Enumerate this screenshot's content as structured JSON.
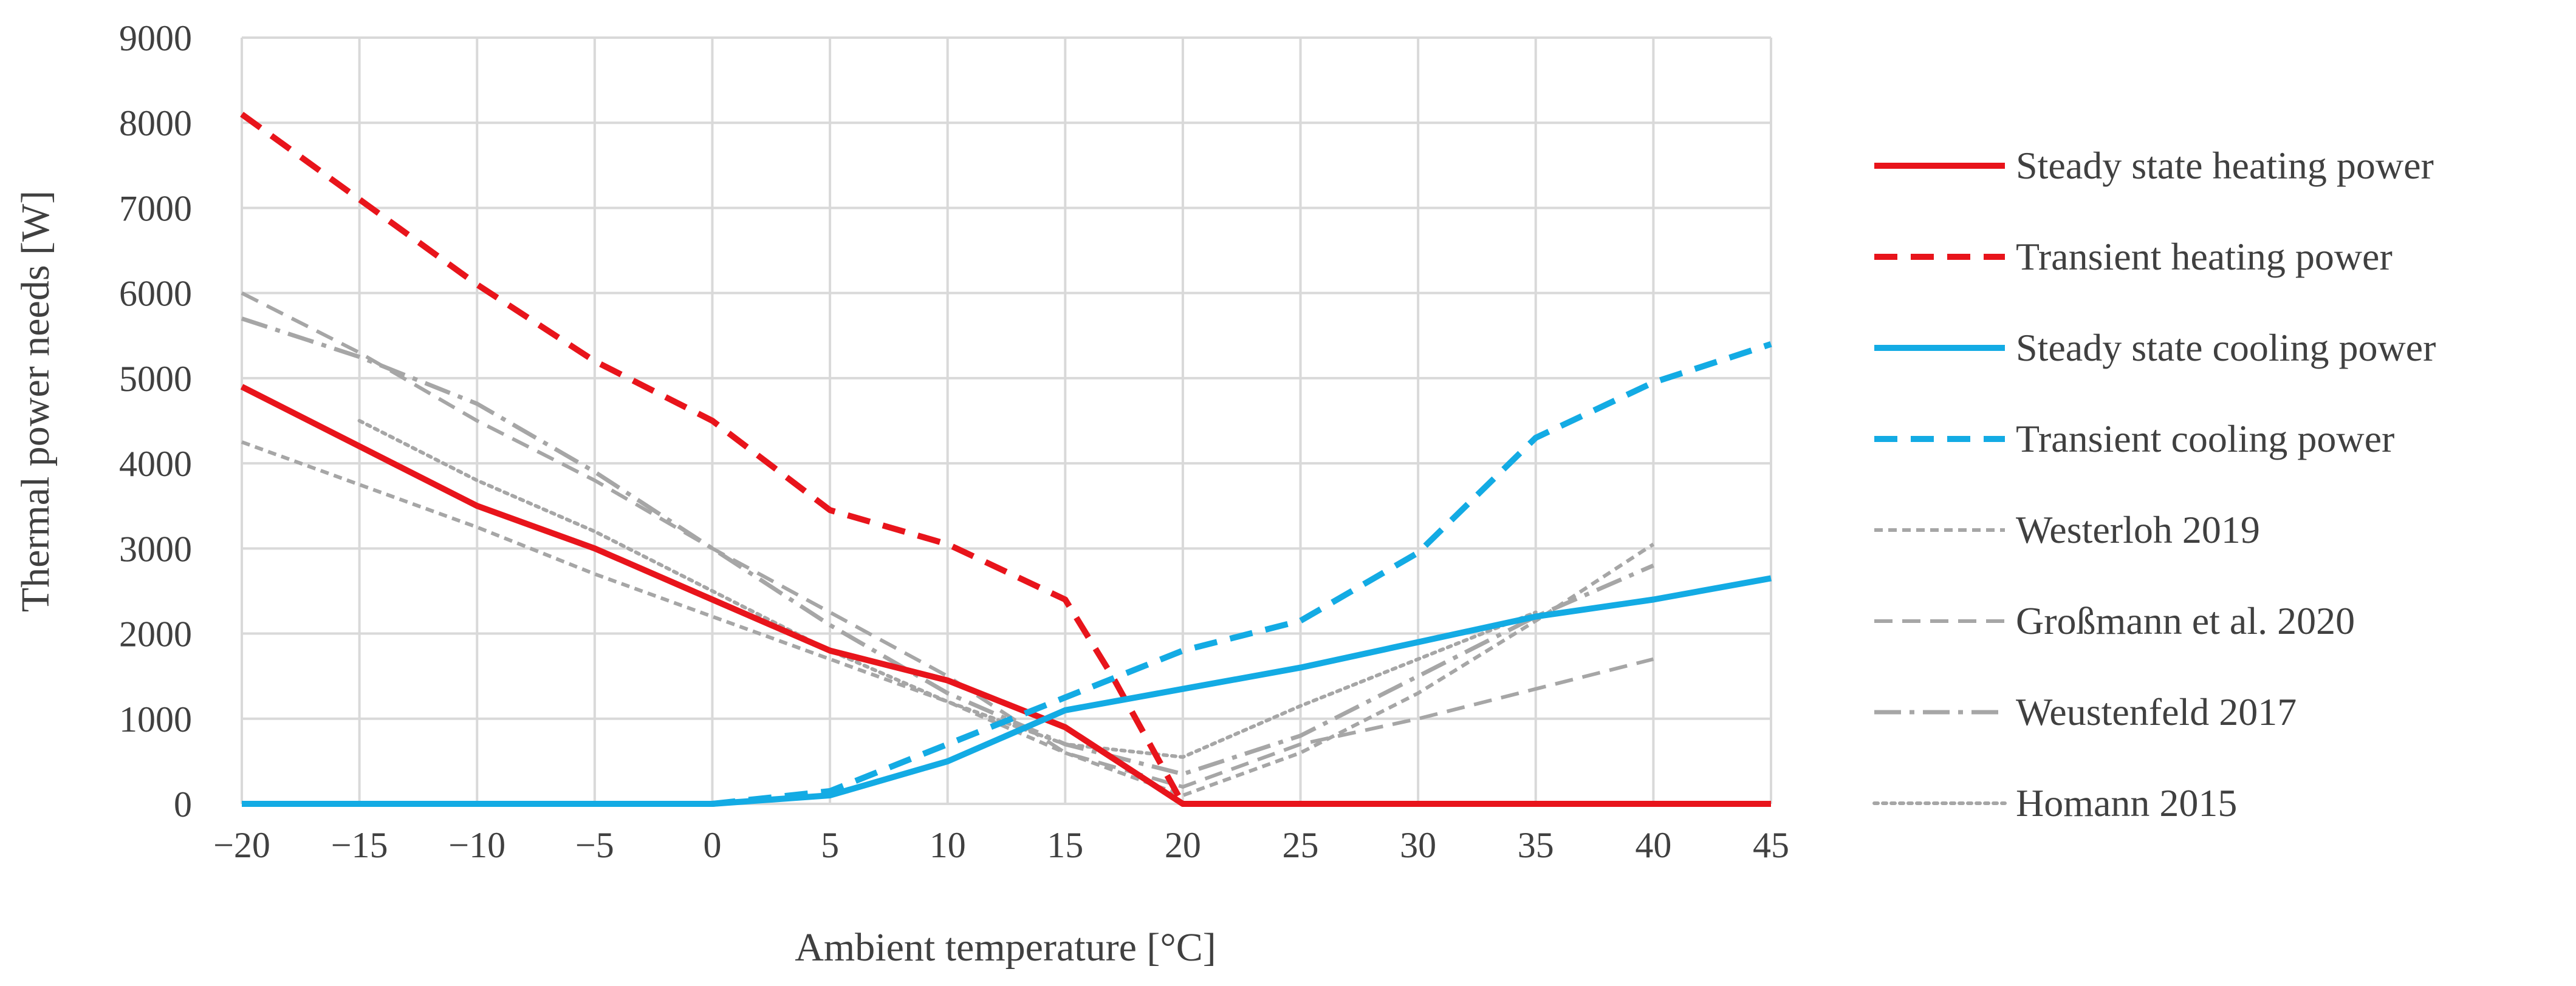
{
  "chart_data": {
    "type": "line",
    "title": "",
    "xlabel": "Ambient temperature [°C]",
    "ylabel": "Thermal power needs [W]",
    "xlim": [
      -20,
      45
    ],
    "ylim": [
      0,
      9000
    ],
    "x_ticks": [
      -20,
      -15,
      -10,
      -5,
      0,
      5,
      10,
      15,
      20,
      25,
      30,
      35,
      40,
      45
    ],
    "x_tick_labels": [
      "−20",
      "−15",
      "−10",
      "−5",
      "0",
      "5",
      "10",
      "15",
      "20",
      "25",
      "30",
      "35",
      "40",
      "45"
    ],
    "y_ticks": [
      0,
      1000,
      2000,
      3000,
      4000,
      5000,
      6000,
      7000,
      8000,
      9000
    ],
    "y_tick_labels": [
      "0",
      "1000",
      "2000",
      "3000",
      "4000",
      "5000",
      "6000",
      "7000",
      "8000",
      "9000"
    ],
    "grid": true,
    "legend_position": "right",
    "series": [
      {
        "name": "Steady state heating power",
        "color": "#E8141B",
        "style": "solid",
        "width": "thick",
        "points": [
          [
            -20,
            4900
          ],
          [
            -15,
            4200
          ],
          [
            -10,
            3500
          ],
          [
            -5,
            3000
          ],
          [
            0,
            2400
          ],
          [
            5,
            1800
          ],
          [
            10,
            1450
          ],
          [
            15,
            900
          ],
          [
            20,
            0
          ],
          [
            25,
            0
          ],
          [
            30,
            0
          ],
          [
            35,
            0
          ],
          [
            40,
            0
          ],
          [
            45,
            0
          ]
        ]
      },
      {
        "name": "Transient heating power",
        "color": "#E8141B",
        "style": "dashed",
        "width": "thick",
        "points": [
          [
            -20,
            8100
          ],
          [
            -15,
            7100
          ],
          [
            -10,
            6100
          ],
          [
            -5,
            5200
          ],
          [
            0,
            4500
          ],
          [
            5,
            3450
          ],
          [
            10,
            3050
          ],
          [
            15,
            2400
          ],
          [
            17,
            1500
          ],
          [
            20,
            0
          ]
        ]
      },
      {
        "name": "Steady state cooling power",
        "color": "#13ABE4",
        "style": "solid",
        "width": "thick",
        "points": [
          [
            -20,
            0
          ],
          [
            0,
            0
          ],
          [
            5,
            100
          ],
          [
            10,
            500
          ],
          [
            15,
            1100
          ],
          [
            20,
            1350
          ],
          [
            25,
            1600
          ],
          [
            30,
            1900
          ],
          [
            35,
            2200
          ],
          [
            40,
            2400
          ],
          [
            45,
            2650
          ]
        ]
      },
      {
        "name": "Transient cooling power",
        "color": "#13ABE4",
        "style": "dashed",
        "width": "thick",
        "points": [
          [
            0,
            0
          ],
          [
            5,
            150
          ],
          [
            10,
            700
          ],
          [
            15,
            1250
          ],
          [
            20,
            1800
          ],
          [
            25,
            2150
          ],
          [
            30,
            2950
          ],
          [
            35,
            4300
          ],
          [
            40,
            4950
          ],
          [
            45,
            5400
          ]
        ]
      },
      {
        "name": "Westerloh 2019",
        "color": "#A6A6A6",
        "style": "short-dash",
        "width": "thin",
        "points": [
          [
            -20,
            4250
          ],
          [
            -15,
            3750
          ],
          [
            -10,
            3250
          ],
          [
            -5,
            2700
          ],
          [
            0,
            2200
          ],
          [
            5,
            1700
          ],
          [
            10,
            1200
          ],
          [
            15,
            600
          ],
          [
            20,
            100
          ],
          [
            25,
            600
          ],
          [
            30,
            1300
          ],
          [
            35,
            2150
          ],
          [
            40,
            3050
          ]
        ]
      },
      {
        "name": "Großmann et al. 2020",
        "color": "#A6A6A6",
        "style": "long-dash",
        "width": "thin",
        "points": [
          [
            -20,
            6000
          ],
          [
            -15,
            5300
          ],
          [
            -10,
            4500
          ],
          [
            -5,
            3800
          ],
          [
            0,
            3000
          ],
          [
            5,
            2250
          ],
          [
            10,
            1500
          ],
          [
            15,
            600
          ],
          [
            20,
            200
          ],
          [
            25,
            700
          ],
          [
            30,
            1000
          ],
          [
            35,
            1350
          ],
          [
            40,
            1700
          ]
        ]
      },
      {
        "name": "Weustenfeld 2017",
        "color": "#A6A6A6",
        "style": "dash-dot",
        "width": "medium",
        "points": [
          [
            -20,
            5700
          ],
          [
            -15,
            5250
          ],
          [
            -10,
            4700
          ],
          [
            -5,
            3900
          ],
          [
            0,
            3000
          ],
          [
            5,
            2100
          ],
          [
            10,
            1300
          ],
          [
            15,
            700
          ],
          [
            20,
            350
          ],
          [
            25,
            800
          ],
          [
            30,
            1500
          ],
          [
            35,
            2200
          ],
          [
            40,
            2800
          ]
        ]
      },
      {
        "name": "Homann 2015",
        "color": "#A6A6A6",
        "style": "dotted",
        "width": "thin",
        "points": [
          [
            -15,
            4500
          ],
          [
            -10,
            3800
          ],
          [
            -5,
            3200
          ],
          [
            0,
            2500
          ],
          [
            5,
            1800
          ],
          [
            10,
            1200
          ],
          [
            15,
            700
          ],
          [
            20,
            550
          ],
          [
            25,
            1150
          ],
          [
            30,
            1700
          ],
          [
            35,
            2250
          ]
        ]
      }
    ]
  }
}
